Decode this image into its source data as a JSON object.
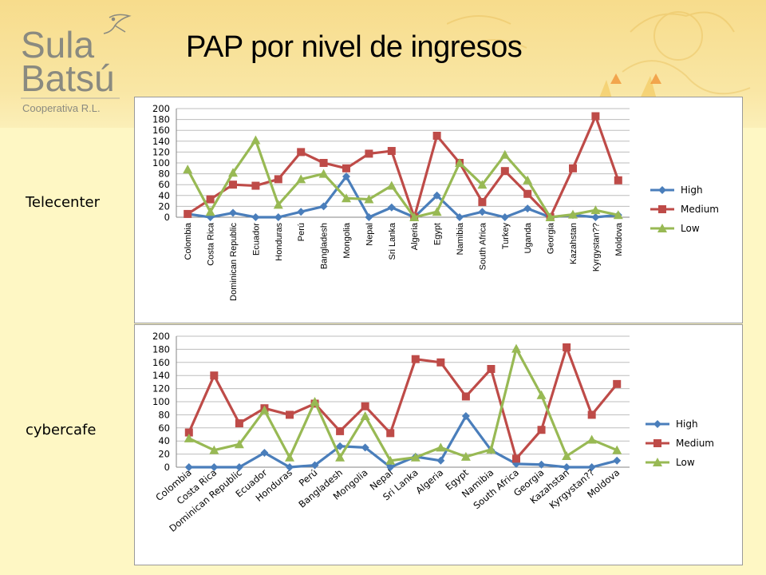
{
  "slide": {
    "title": "PAP por nivel de ingresos",
    "logo": {
      "line1": "Sula",
      "line2": "Batsú",
      "line3": "Cooperativa R.L."
    },
    "row_labels": [
      "Telecenter",
      "cybercafe"
    ]
  },
  "colors": {
    "high": "#4a7ebb",
    "medium": "#be4b48",
    "low": "#98b954",
    "logo_text": "#8a8a80",
    "header_bg": "#f7dc8c",
    "slide_bg": "#fef7c4"
  },
  "chart_data": [
    {
      "type": "line",
      "title": "",
      "xlabel": "",
      "ylabel": "",
      "ylim": [
        0,
        200
      ],
      "yticks": [
        0,
        20,
        40,
        60,
        80,
        100,
        120,
        140,
        160,
        180,
        200
      ],
      "grid": true,
      "legend": "right",
      "categories": [
        "Colombia",
        "Costa Rica",
        "Dominican Republic",
        "Ecuador",
        "Honduras",
        "Perú",
        "Bangladesh",
        "Mongolia",
        "Nepal",
        "Sri Lanka",
        "Algeria",
        "Egypt",
        "Namibia",
        "South Africa",
        "Turkey",
        "Uganda",
        "Georgia",
        "Kazahstan",
        "Kyrgystan??",
        "Moldova"
      ],
      "series": [
        {
          "name": "High",
          "values": [
            6,
            0,
            8,
            0,
            0,
            10,
            20,
            75,
            0,
            18,
            0,
            40,
            0,
            10,
            0,
            16,
            0,
            4,
            0,
            4
          ]
        },
        {
          "name": "Medium",
          "values": [
            6,
            33,
            60,
            58,
            70,
            120,
            100,
            90,
            117,
            122,
            0,
            150,
            100,
            28,
            85,
            43,
            0,
            90,
            186,
            68
          ]
        },
        {
          "name": "Low",
          "values": [
            88,
            10,
            82,
            142,
            23,
            70,
            80,
            35,
            33,
            58,
            0,
            10,
            100,
            60,
            115,
            68,
            0,
            5,
            13,
            4
          ]
        }
      ]
    },
    {
      "type": "line",
      "title": "",
      "xlabel": "",
      "ylabel": "",
      "ylim": [
        0,
        200
      ],
      "yticks": [
        0,
        20,
        40,
        60,
        80,
        100,
        120,
        140,
        160,
        180,
        200
      ],
      "grid": true,
      "legend": "right",
      "categories": [
        "Colombia",
        "Costa Rica",
        "Dominican Republic",
        "Ecuador",
        "Honduras",
        "Perú",
        "Bangladesh",
        "Mongolia",
        "Nepal",
        "Sri Lanka",
        "Algeria",
        "Egypt",
        "Namibia",
        "South Africa",
        "Georgia",
        "Kazahstan",
        "Kyrgystan??",
        "Moldova"
      ],
      "series": [
        {
          "name": "High",
          "values": [
            0,
            0,
            0,
            22,
            0,
            3,
            32,
            30,
            0,
            16,
            10,
            78,
            26,
            5,
            4,
            0,
            0,
            10
          ]
        },
        {
          "name": "Medium",
          "values": [
            53,
            140,
            67,
            90,
            80,
            97,
            55,
            93,
            52,
            165,
            160,
            108,
            150,
            13,
            57,
            183,
            80,
            127
          ]
        },
        {
          "name": "Low",
          "values": [
            44,
            26,
            35,
            87,
            15,
            100,
            15,
            78,
            10,
            15,
            30,
            16,
            27,
            181,
            110,
            17,
            42,
            26
          ]
        }
      ]
    }
  ]
}
